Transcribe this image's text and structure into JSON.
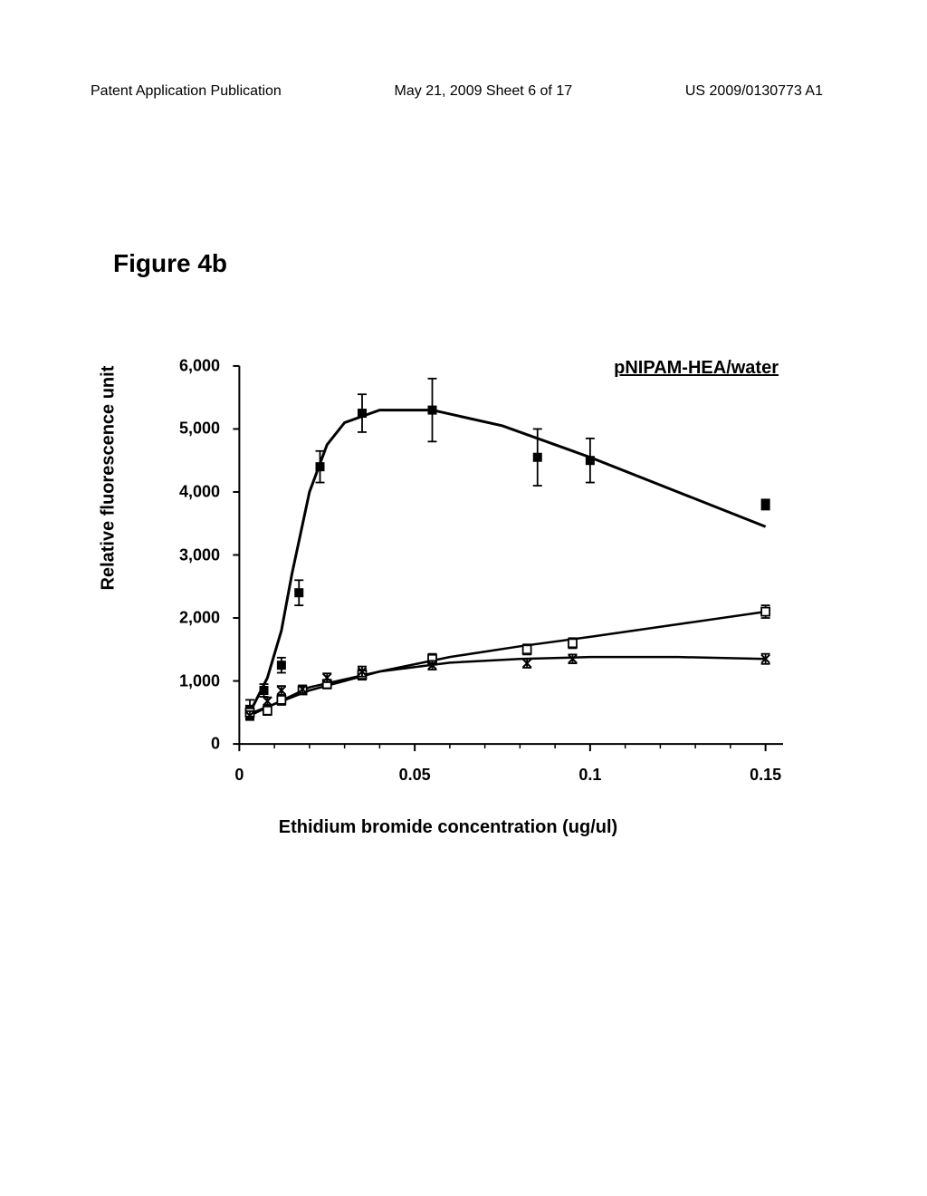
{
  "header": {
    "left": "Patent Application Publication",
    "center": "May 21, 2009  Sheet 6 of 17",
    "right": "US 2009/0130773 A1"
  },
  "figure_label": "Figure 4b",
  "chart": {
    "type": "scatter-line",
    "legend_title": "pNIPAM-HEA/water",
    "x_axis": {
      "label": "Ethidium bromide concentration (ug/ul)",
      "ticks": [
        0,
        0.05,
        0.1,
        0.15
      ],
      "min": -0.005,
      "max": 0.155
    },
    "y_axis": {
      "label": "Relative fluorescence unit",
      "ticks": [
        0,
        1000,
        2000,
        3000,
        4000,
        5000,
        6000
      ],
      "tick_labels": [
        "0",
        "1,000",
        "2,000",
        "3,000",
        "4,000",
        "5,000",
        "6,000"
      ],
      "min": -200,
      "max": 6200
    },
    "series": [
      {
        "name": "series1",
        "marker": "filled-square",
        "marker_size": 10,
        "color": "#000000",
        "line_width": 3,
        "data": [
          {
            "x": 0.003,
            "y": 550,
            "err": 150
          },
          {
            "x": 0.007,
            "y": 850,
            "err": 100
          },
          {
            "x": 0.012,
            "y": 1250,
            "err": 120
          },
          {
            "x": 0.017,
            "y": 2400,
            "err": 200
          },
          {
            "x": 0.023,
            "y": 4400,
            "err": 250
          },
          {
            "x": 0.035,
            "y": 5250,
            "err": 300
          },
          {
            "x": 0.055,
            "y": 5300,
            "err": 500
          },
          {
            "x": 0.085,
            "y": 4550,
            "err": 450
          },
          {
            "x": 0.1,
            "y": 4500,
            "err": 350
          },
          {
            "x": 0.15,
            "y": 3800,
            "err": 80
          }
        ],
        "curve": [
          {
            "x": 0.003,
            "y": 500
          },
          {
            "x": 0.008,
            "y": 1050
          },
          {
            "x": 0.012,
            "y": 1800
          },
          {
            "x": 0.015,
            "y": 2700
          },
          {
            "x": 0.02,
            "y": 4000
          },
          {
            "x": 0.025,
            "y": 4750
          },
          {
            "x": 0.03,
            "y": 5100
          },
          {
            "x": 0.04,
            "y": 5300
          },
          {
            "x": 0.055,
            "y": 5300
          },
          {
            "x": 0.075,
            "y": 5050
          },
          {
            "x": 0.1,
            "y": 4550
          },
          {
            "x": 0.125,
            "y": 4000
          },
          {
            "x": 0.15,
            "y": 3450
          }
        ]
      },
      {
        "name": "series2",
        "marker": "open-square",
        "marker_size": 9,
        "color": "#000000",
        "line_width": 2.5,
        "data": [
          {
            "x": 0.003,
            "y": 500,
            "err": 80
          },
          {
            "x": 0.008,
            "y": 530,
            "err": 70
          },
          {
            "x": 0.012,
            "y": 700,
            "err": 80
          },
          {
            "x": 0.018,
            "y": 850,
            "err": 60
          },
          {
            "x": 0.025,
            "y": 950,
            "err": 70
          },
          {
            "x": 0.035,
            "y": 1100,
            "err": 80
          },
          {
            "x": 0.055,
            "y": 1350,
            "err": 80
          },
          {
            "x": 0.082,
            "y": 1500,
            "err": 80
          },
          {
            "x": 0.095,
            "y": 1600,
            "err": 80
          },
          {
            "x": 0.15,
            "y": 2100,
            "err": 100
          }
        ],
        "curve": [
          {
            "x": 0.003,
            "y": 480
          },
          {
            "x": 0.02,
            "y": 850
          },
          {
            "x": 0.04,
            "y": 1150
          },
          {
            "x": 0.06,
            "y": 1380
          },
          {
            "x": 0.08,
            "y": 1550
          },
          {
            "x": 0.1,
            "y": 1700
          },
          {
            "x": 0.125,
            "y": 1900
          },
          {
            "x": 0.15,
            "y": 2100
          }
        ]
      },
      {
        "name": "series3",
        "marker": "x",
        "marker_size": 9,
        "color": "#000000",
        "line_width": 2.5,
        "data": [
          {
            "x": 0.003,
            "y": 450,
            "err": 70
          },
          {
            "x": 0.008,
            "y": 680,
            "err": 60
          },
          {
            "x": 0.012,
            "y": 850,
            "err": 70
          },
          {
            "x": 0.018,
            "y": 870,
            "err": 60
          },
          {
            "x": 0.025,
            "y": 1050,
            "err": 70
          },
          {
            "x": 0.035,
            "y": 1150,
            "err": 80
          },
          {
            "x": 0.055,
            "y": 1250,
            "err": 70
          },
          {
            "x": 0.082,
            "y": 1280,
            "err": 70
          },
          {
            "x": 0.095,
            "y": 1350,
            "err": 70
          },
          {
            "x": 0.15,
            "y": 1350,
            "err": 80
          }
        ],
        "curve": [
          {
            "x": 0.003,
            "y": 450
          },
          {
            "x": 0.02,
            "y": 900
          },
          {
            "x": 0.04,
            "y": 1150
          },
          {
            "x": 0.06,
            "y": 1290
          },
          {
            "x": 0.08,
            "y": 1350
          },
          {
            "x": 0.1,
            "y": 1380
          },
          {
            "x": 0.125,
            "y": 1380
          },
          {
            "x": 0.15,
            "y": 1350
          }
        ]
      }
    ],
    "colors": {
      "background": "#ffffff",
      "axis": "#000000",
      "text": "#000000"
    },
    "line_widths": {
      "axis": 2,
      "tick": 2
    }
  }
}
